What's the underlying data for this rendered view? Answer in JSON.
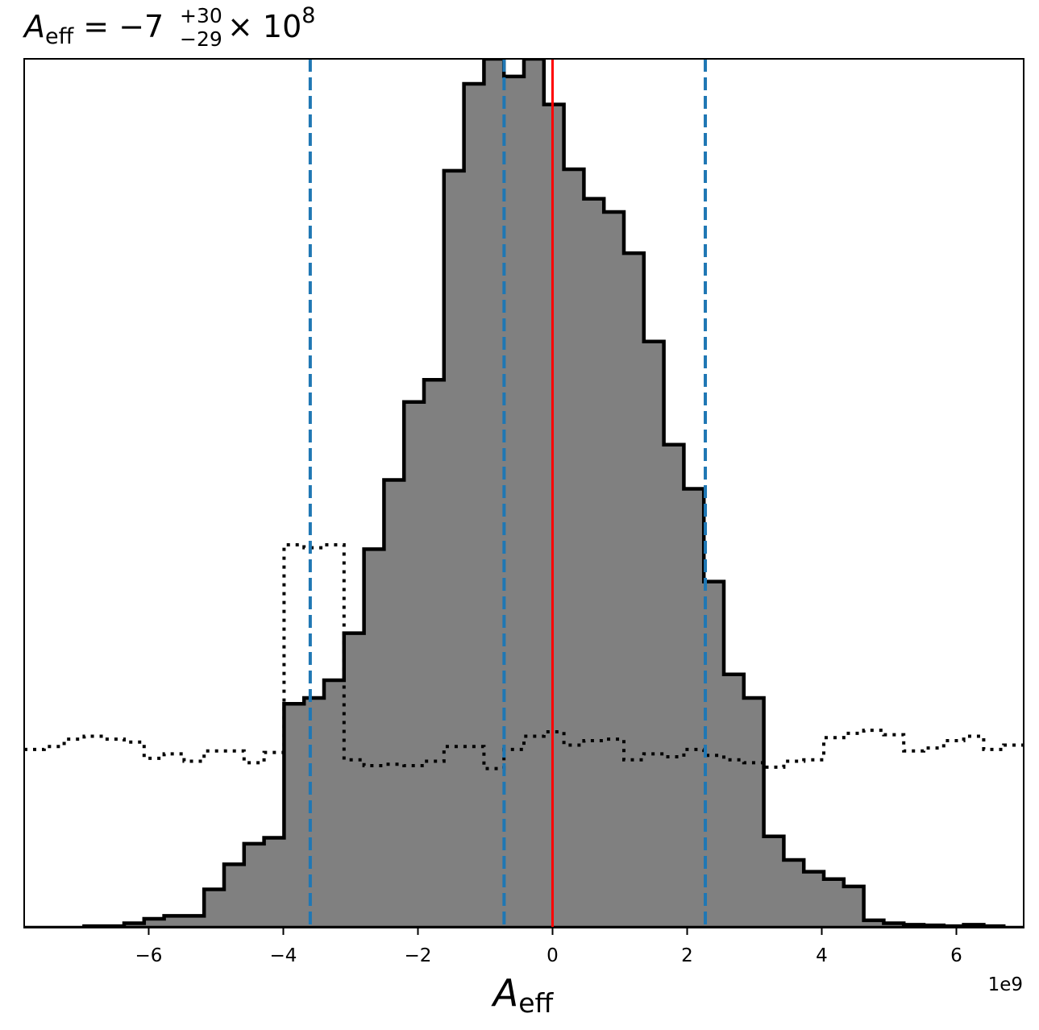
{
  "chart_data": {
    "type": "histogram",
    "title": {
      "symbol": "A",
      "symbol_sub": "eff",
      "equals": " = ",
      "value": "−7",
      "upper": "+30",
      "lower": "−29",
      "times": " × 10",
      "exponent": "8"
    },
    "xlabel": {
      "symbol": "A",
      "sub": "eff"
    },
    "offset_text": "1e9",
    "xlim": [
      -7.85,
      7.0
    ],
    "ylim": [
      0,
      2950
    ],
    "x_ticks": [
      -6,
      -4,
      -2,
      0,
      2,
      4,
      6
    ],
    "x_tick_labels": [
      "−6",
      "−4",
      "−2",
      "0",
      "2",
      "4",
      "6"
    ],
    "y_ticks_shown": false,
    "grid": false,
    "bin_edges": [
      -7.85,
      -7.553,
      -7.256,
      -6.959,
      -6.662,
      -6.365,
      -6.068,
      -5.771,
      -5.474,
      -5.177,
      -4.88,
      -4.583,
      -4.286,
      -3.989,
      -3.692,
      -3.395,
      -3.098,
      -2.801,
      -2.504,
      -2.207,
      -1.91,
      -1.613,
      -1.316,
      -1.019,
      -0.722,
      -0.425,
      -0.128,
      0.169,
      0.466,
      0.763,
      1.06,
      1.357,
      1.654,
      1.951,
      2.248,
      2.545,
      2.842,
      3.139,
      3.436,
      3.733,
      4.03,
      4.327,
      4.624,
      4.921,
      5.218,
      5.515,
      5.812,
      6.109,
      6.406,
      6.703,
      7.0
    ],
    "series": [
      {
        "style": "filled-step",
        "fill": "#808080",
        "stroke": "#000000",
        "counts": [
          0,
          0,
          0,
          5,
          5,
          15,
          30,
          40,
          40,
          130,
          215,
          285,
          305,
          760,
          780,
          840,
          1000,
          1285,
          1520,
          1785,
          1860,
          2570,
          2865,
          2950,
          2890,
          2950,
          2795,
          2575,
          2475,
          2430,
          2290,
          1990,
          1640,
          1490,
          1175,
          860,
          780,
          310,
          230,
          190,
          165,
          140,
          25,
          15,
          10,
          8,
          5,
          10,
          5,
          0
        ]
      },
      {
        "style": "dotted-step",
        "stroke": "#000000",
        "counts": [
          605,
          615,
          640,
          650,
          640,
          630,
          575,
          590,
          565,
          600,
          600,
          560,
          595,
          1300,
          1290,
          1300,
          570,
          550,
          555,
          550,
          565,
          615,
          615,
          540,
          605,
          650,
          665,
          620,
          635,
          640,
          570,
          590,
          580,
          605,
          585,
          570,
          560,
          545,
          565,
          570,
          645,
          660,
          670,
          655,
          600,
          610,
          635,
          650,
          605,
          620
        ]
      }
    ],
    "vlines": [
      {
        "x": 0.0,
        "color": "#ff0000",
        "style": "solid"
      },
      {
        "x": -3.6,
        "color": "#1f77b4",
        "style": "dashed"
      },
      {
        "x": -0.72,
        "color": "#1f77b4",
        "style": "dashed"
      },
      {
        "x": 2.27,
        "color": "#1f77b4",
        "style": "dashed"
      }
    ]
  }
}
